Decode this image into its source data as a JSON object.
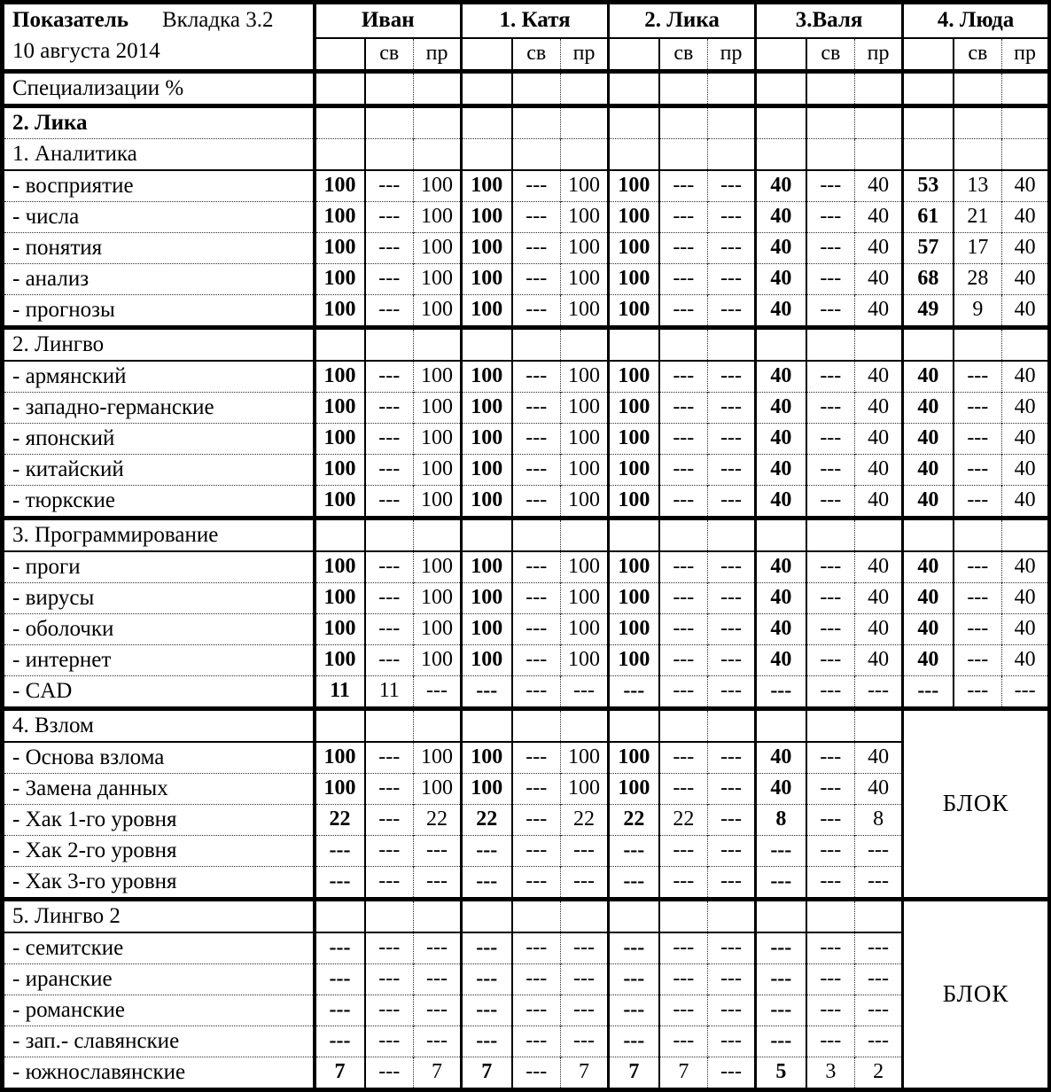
{
  "header": {
    "corner": {
      "title": "Показатель",
      "tab": "Вкладка 3.2",
      "date": "10 августа 2014"
    },
    "groups": [
      "Иван",
      "1. Катя",
      "2. Лика",
      "3.Валя",
      "4. Люда"
    ],
    "subcols": [
      "",
      "св",
      "пр"
    ]
  },
  "spec_row": {
    "label": "Специализации %"
  },
  "subject_row": {
    "label": "2. Лика"
  },
  "block_label": "БЛОК",
  "colors": {
    "text": "#000000",
    "border": "#000000",
    "thin_line": "#2a2a2a",
    "background": "#ffffff"
  },
  "sections": [
    {
      "title": "1. Аналитика",
      "blocked": false,
      "rows": [
        {
          "label": "- восприятие",
          "values": [
            "100",
            "---",
            "100",
            "100",
            "---",
            "100",
            "100",
            "---",
            "---",
            "40",
            "---",
            "40",
            "53",
            "13",
            "40"
          ]
        },
        {
          "label": "- числа",
          "values": [
            "100",
            "---",
            "100",
            "100",
            "---",
            "100",
            "100",
            "---",
            "---",
            "40",
            "---",
            "40",
            "61",
            "21",
            "40"
          ]
        },
        {
          "label": "- понятия",
          "values": [
            "100",
            "---",
            "100",
            "100",
            "---",
            "100",
            "100",
            "---",
            "---",
            "40",
            "---",
            "40",
            "57",
            "17",
            "40"
          ]
        },
        {
          "label": "- анализ",
          "values": [
            "100",
            "---",
            "100",
            "100",
            "---",
            "100",
            "100",
            "---",
            "---",
            "40",
            "---",
            "40",
            "68",
            "28",
            "40"
          ]
        },
        {
          "label": "- прогнозы",
          "values": [
            "100",
            "---",
            "100",
            "100",
            "---",
            "100",
            "100",
            "---",
            "---",
            "40",
            "---",
            "40",
            "49",
            "9",
            "40"
          ]
        }
      ]
    },
    {
      "title": "2. Лингво",
      "blocked": false,
      "rows": [
        {
          "label": "- армянский",
          "values": [
            "100",
            "---",
            "100",
            "100",
            "---",
            "100",
            "100",
            "---",
            "---",
            "40",
            "---",
            "40",
            "40",
            "---",
            "40"
          ]
        },
        {
          "label": "- западно-германские",
          "values": [
            "100",
            "---",
            "100",
            "100",
            "---",
            "100",
            "100",
            "---",
            "---",
            "40",
            "---",
            "40",
            "40",
            "---",
            "40"
          ]
        },
        {
          "label": "- японский",
          "values": [
            "100",
            "---",
            "100",
            "100",
            "---",
            "100",
            "100",
            "---",
            "---",
            "40",
            "---",
            "40",
            "40",
            "---",
            "40"
          ]
        },
        {
          "label": "- китайский",
          "values": [
            "100",
            "---",
            "100",
            "100",
            "---",
            "100",
            "100",
            "---",
            "---",
            "40",
            "---",
            "40",
            "40",
            "---",
            "40"
          ]
        },
        {
          "label": "- тюркские",
          "values": [
            "100",
            "---",
            "100",
            "100",
            "---",
            "100",
            "100",
            "---",
            "---",
            "40",
            "---",
            "40",
            "40",
            "---",
            "40"
          ]
        }
      ]
    },
    {
      "title": "3. Программирование",
      "blocked": false,
      "rows": [
        {
          "label": "- проги",
          "values": [
            "100",
            "---",
            "100",
            "100",
            "---",
            "100",
            "100",
            "---",
            "---",
            "40",
            "---",
            "40",
            "40",
            "---",
            "40"
          ]
        },
        {
          "label": "- вирусы",
          "values": [
            "100",
            "---",
            "100",
            "100",
            "---",
            "100",
            "100",
            "---",
            "---",
            "40",
            "---",
            "40",
            "40",
            "---",
            "40"
          ]
        },
        {
          "label": "- оболочки",
          "values": [
            "100",
            "---",
            "100",
            "100",
            "---",
            "100",
            "100",
            "---",
            "---",
            "40",
            "---",
            "40",
            "40",
            "---",
            "40"
          ]
        },
        {
          "label": "- интернет",
          "values": [
            "100",
            "---",
            "100",
            "100",
            "---",
            "100",
            "100",
            "---",
            "---",
            "40",
            "---",
            "40",
            "40",
            "---",
            "40"
          ]
        },
        {
          "label": "- CAD",
          "values": [
            "11",
            "11",
            "---",
            "---",
            "---",
            "---",
            "---",
            "---",
            "---",
            "---",
            "---",
            "---",
            "---",
            "---",
            "---"
          ]
        }
      ]
    },
    {
      "title": "4. Взлом",
      "blocked": true,
      "rows": [
        {
          "label": "- Основа взлома",
          "values": [
            "100",
            "---",
            "100",
            "100",
            "---",
            "100",
            "100",
            "---",
            "---",
            "40",
            "---",
            "40"
          ]
        },
        {
          "label": "- Замена данных",
          "values": [
            "100",
            "---",
            "100",
            "100",
            "---",
            "100",
            "100",
            "---",
            "---",
            "40",
            "---",
            "40"
          ]
        },
        {
          "label": "- Хак 1-го уровня",
          "values": [
            "22",
            "---",
            "22",
            "22",
            "---",
            "22",
            "22",
            "22",
            "---",
            "8",
            "---",
            "8"
          ]
        },
        {
          "label": "- Хак 2-го уровня",
          "values": [
            "---",
            "---",
            "---",
            "---",
            "---",
            "---",
            "---",
            "---",
            "---",
            "---",
            "---",
            "---"
          ]
        },
        {
          "label": "- Хак 3-го уровня",
          "values": [
            "---",
            "---",
            "---",
            "---",
            "---",
            "---",
            "---",
            "---",
            "---",
            "---",
            "---",
            "---"
          ]
        }
      ]
    },
    {
      "title": "5. Лингво 2",
      "blocked": true,
      "rows": [
        {
          "label": "- семитские",
          "values": [
            "---",
            "---",
            "---",
            "---",
            "---",
            "---",
            "---",
            "---",
            "---",
            "---",
            "---",
            "---"
          ]
        },
        {
          "label": "- иранские",
          "values": [
            "---",
            "---",
            "---",
            "---",
            "---",
            "---",
            "---",
            "---",
            "---",
            "---",
            "---",
            "---"
          ]
        },
        {
          "label": "- романские",
          "values": [
            "---",
            "---",
            "---",
            "---",
            "---",
            "---",
            "---",
            "---",
            "---",
            "---",
            "---",
            "---"
          ]
        },
        {
          "label": "- зап.- славянские",
          "values": [
            "---",
            "---",
            "---",
            "---",
            "---",
            "---",
            "---",
            "---",
            "---",
            "---",
            "---",
            "---"
          ]
        },
        {
          "label": "- южнославянские",
          "values": [
            "7",
            "---",
            "7",
            "7",
            "---",
            "7",
            "7",
            "7",
            "---",
            "5",
            "3",
            "2"
          ]
        }
      ]
    }
  ]
}
